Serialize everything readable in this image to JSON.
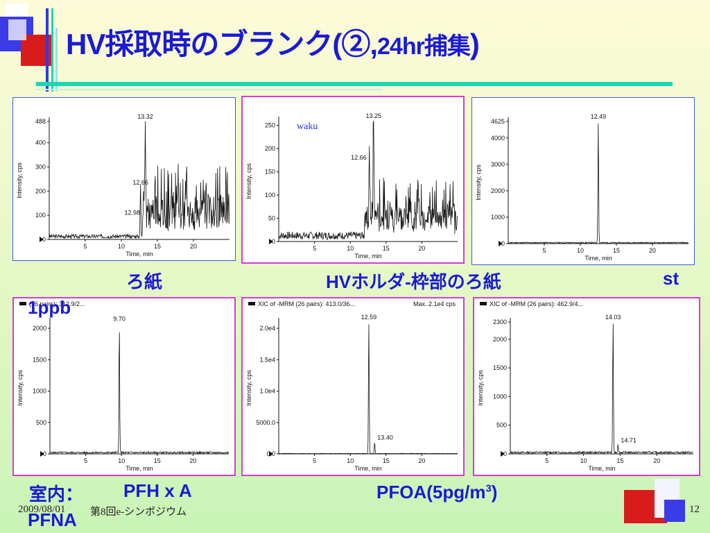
{
  "title": {
    "main": "HV採取時のブランク(②,",
    "tail": "24hr捕集",
    "close": ")"
  },
  "captions": {
    "c1": "ろ紙",
    "c2": "HVホルダ-枠部のろ紙",
    "c3": "st",
    "c4": "1ppb",
    "c5": "室内：",
    "c6": "PFH x A",
    "c7": "PFNA",
    "c8": "PFOA(5pg/m",
    "c8sup": "3",
    "c8end": ")"
  },
  "footer": {
    "date": "2009/08/01",
    "event": "第8回e-シンポジウム",
    "page": "12"
  },
  "colors": {
    "title": "#1a1ad6",
    "accent_line": "#1bd7b0",
    "blue_sq": "#3b3be8",
    "red_sq": "#d81c1c",
    "panel_border_magenta": "#d63ad6",
    "panel_border_blue": "#3a5bd6"
  },
  "chart_data": [
    {
      "type": "line",
      "border": "blue",
      "header": "",
      "header_right": "",
      "annotation": "",
      "xlabel": "Time, min",
      "ylabel": "Intensity, cps",
      "xlim": [
        0,
        25
      ],
      "ylim": [
        0,
        488
      ],
      "xticks": [
        5,
        10,
        15,
        20
      ],
      "yticks": [
        0,
        100,
        200,
        300,
        400,
        488
      ],
      "ytick_labels": [
        "0",
        "100",
        "200",
        "300",
        "400",
        "488"
      ],
      "peaks": [
        {
          "x": 12.98,
          "y": 90,
          "label": "12.98"
        },
        {
          "x": 12.66,
          "y": 215,
          "label": "12.66"
        },
        {
          "x": 13.32,
          "y": 488,
          "label": "13.32"
        }
      ],
      "baseline": 15,
      "noise_after": 13.0,
      "noise_level": 120,
      "seed": 3
    },
    {
      "type": "line",
      "border": "magenta",
      "header": "",
      "header_right": "",
      "annotation": "waku",
      "xlabel": "Time, min",
      "ylabel": "Intensity, cps",
      "xlim": [
        0,
        25
      ],
      "ylim": [
        0,
        260
      ],
      "xticks": [
        5,
        10,
        15,
        20
      ],
      "yticks": [
        0,
        50,
        100,
        150,
        200,
        250
      ],
      "ytick_labels": [
        "0",
        "50",
        "100",
        "150",
        "200",
        "250"
      ],
      "peaks": [
        {
          "x": 12.66,
          "y": 170,
          "label": "12.66"
        },
        {
          "x": 13.25,
          "y": 260,
          "label": "13.25"
        }
      ],
      "baseline": 15,
      "noise_after": 12.0,
      "noise_level": 50,
      "seed": 7
    },
    {
      "type": "line",
      "border": "blue",
      "header": "",
      "header_right": "",
      "annotation": "",
      "xlabel": "Time, min",
      "ylabel": "Intensity, cps",
      "xlim": [
        0,
        25
      ],
      "ylim": [
        0,
        4625
      ],
      "xticks": [
        5,
        10,
        15,
        20
      ],
      "yticks": [
        0,
        1000,
        2000,
        3000,
        4000,
        4625
      ],
      "ytick_labels": [
        "0",
        "1000",
        "2000",
        "3000",
        "4000",
        "4625"
      ],
      "peaks": [
        {
          "x": 12.49,
          "y": 4625,
          "label": "12.49"
        }
      ],
      "baseline": 40,
      "noise_after": 100,
      "noise_level": 0,
      "seed": 11
    },
    {
      "type": "line",
      "border": "magenta",
      "header": "(26 pairs): 312.9/2...",
      "header_right": "",
      "annotation": "",
      "xlabel": "Time, min",
      "ylabel": "Intensity, cps",
      "xlim": [
        0,
        25
      ],
      "ylim": [
        0,
        2100
      ],
      "xticks": [
        5,
        10,
        15,
        20
      ],
      "yticks": [
        0,
        500,
        1000,
        1500,
        2000
      ],
      "ytick_labels": [
        "0",
        "500",
        "1000",
        "1500",
        "2000"
      ],
      "peaks": [
        {
          "x": 9.7,
          "y": 2070,
          "label": "9.70"
        }
      ],
      "baseline": 25,
      "noise_after": 100,
      "noise_level": 0,
      "seed": 5
    },
    {
      "type": "line",
      "border": "magenta",
      "header": "XIC of -MRM (26 pairs): 413.0/36...",
      "header_right": "Max. 2.1e4 cps",
      "annotation": "",
      "xlabel": "Time, min",
      "ylabel": "Intensity, cps",
      "xlim": [
        0,
        25
      ],
      "ylim": [
        0,
        21000
      ],
      "xticks": [
        5,
        10,
        15,
        20
      ],
      "yticks": [
        0,
        5000,
        10000,
        15000,
        20000
      ],
      "ytick_labels": [
        "0.0",
        "5000.0",
        "1.0e4",
        "1.5e4",
        "2.0e4"
      ],
      "peaks": [
        {
          "x": 12.59,
          "y": 21000,
          "label": "12.59"
        },
        {
          "x": 13.4,
          "y": 1800,
          "label": "13.40"
        }
      ],
      "baseline": 60,
      "noise_after": 100,
      "noise_level": 0,
      "seed": 9
    },
    {
      "type": "line",
      "border": "magenta",
      "header": "XIC of -MRM (26 pairs): 462.9/4...",
      "header_right": "",
      "annotation": "",
      "xlabel": "Time, min",
      "ylabel": "Intensity, cps",
      "xlim": [
        0,
        25
      ],
      "ylim": [
        0,
        2300
      ],
      "xticks": [
        5,
        10,
        15,
        20
      ],
      "yticks": [
        0,
        500,
        1000,
        1500,
        2000,
        2300
      ],
      "ytick_labels": [
        "0",
        "500",
        "1000",
        "1500",
        "2000",
        "2300"
      ],
      "peaks": [
        {
          "x": 14.03,
          "y": 2300,
          "label": "14.03"
        },
        {
          "x": 14.71,
          "y": 150,
          "label": "14.71"
        }
      ],
      "baseline": 30,
      "noise_after": 100,
      "noise_level": 0,
      "seed": 13
    }
  ]
}
